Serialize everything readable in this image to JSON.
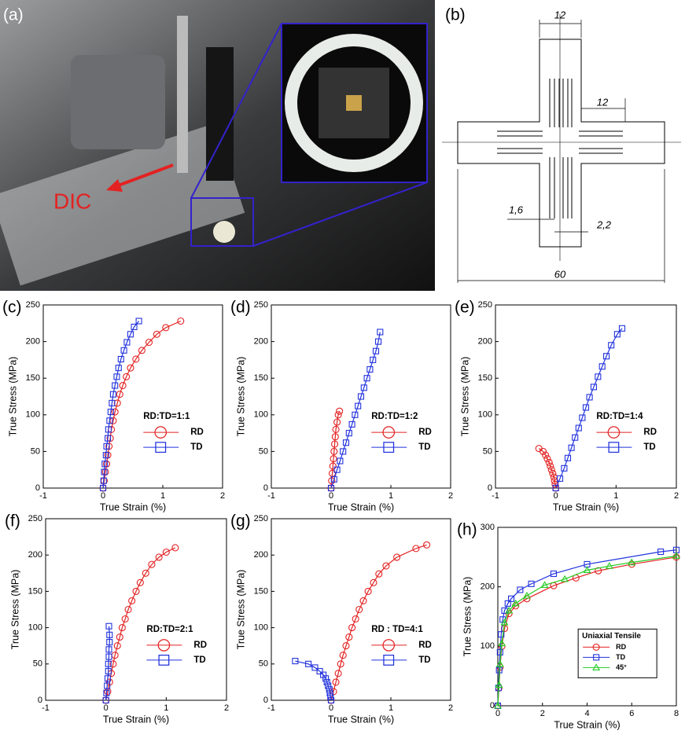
{
  "photo": {
    "label": "(a)",
    "annotation": "DIC"
  },
  "drawing": {
    "label": "(b)",
    "dimensions": [
      "12",
      "12",
      "1,6",
      "2,2",
      "60"
    ]
  },
  "chart_data": [
    {
      "type": "line",
      "label": "(c)",
      "xlabel": "True Strain (%)",
      "ylabel": "True Stress (MPa)",
      "annotation": "RD:TD=1:1",
      "xlim": [
        -1,
        2
      ],
      "xticks": [
        -1,
        0,
        1,
        2
      ],
      "ylim": [
        0,
        250
      ],
      "yticks": [
        0,
        50,
        100,
        150,
        200,
        250
      ],
      "series": [
        {
          "name": "RD",
          "color": "#e32222",
          "marker": "circle",
          "x": [
            0,
            0.02,
            0.04,
            0.06,
            0.08,
            0.1,
            0.12,
            0.14,
            0.17,
            0.2,
            0.24,
            0.28,
            0.33,
            0.39,
            0.46,
            0.55,
            0.65,
            0.77,
            0.9,
            1.05,
            1.3
          ],
          "values": [
            0,
            10,
            22,
            33,
            45,
            57,
            68,
            80,
            92,
            104,
            116,
            128,
            140,
            152,
            164,
            176,
            188,
            199,
            210,
            219,
            228
          ]
        },
        {
          "name": "TD",
          "color": "#2233dd",
          "marker": "square",
          "x": [
            0,
            0.01,
            0.02,
            0.03,
            0.05,
            0.06,
            0.08,
            0.09,
            0.11,
            0.13,
            0.15,
            0.17,
            0.2,
            0.23,
            0.26,
            0.3,
            0.35,
            0.4,
            0.46,
            0.52,
            0.6
          ],
          "values": [
            0,
            10,
            22,
            33,
            45,
            57,
            68,
            80,
            92,
            104,
            116,
            128,
            140,
            152,
            164,
            176,
            188,
            199,
            210,
            220,
            228
          ]
        }
      ]
    },
    {
      "type": "line",
      "label": "(d)",
      "xlabel": "True Strain (%)",
      "ylabel": "True Stress (MPa)",
      "annotation": "RD:TD=1:2",
      "xlim": [
        -1,
        2
      ],
      "xticks": [
        -1,
        0,
        1,
        2
      ],
      "ylim": [
        0,
        250
      ],
      "yticks": [
        0,
        50,
        100,
        150,
        200,
        250
      ],
      "series": [
        {
          "name": "RD",
          "color": "#e32222",
          "marker": "circle",
          "x": [
            0,
            0.01,
            0.02,
            0.03,
            0.04,
            0.05,
            0.06,
            0.07,
            0.08,
            0.1,
            0.12,
            0.14
          ],
          "values": [
            0,
            10,
            20,
            30,
            40,
            50,
            60,
            70,
            80,
            90,
            100,
            105
          ]
        },
        {
          "name": "TD",
          "color": "#2233dd",
          "marker": "square",
          "x": [
            0,
            0.05,
            0.1,
            0.15,
            0.2,
            0.25,
            0.3,
            0.35,
            0.4,
            0.45,
            0.5,
            0.55,
            0.6,
            0.65,
            0.7,
            0.75,
            0.79,
            0.82
          ],
          "values": [
            0,
            12,
            25,
            37,
            50,
            62,
            75,
            87,
            100,
            112,
            125,
            137,
            150,
            162,
            175,
            187,
            200,
            213
          ]
        }
      ]
    },
    {
      "type": "line",
      "label": "(e)",
      "xlabel": "True Strain (%)",
      "ylabel": "True Stress (MPa)",
      "annotation": "RD:TD=1:4",
      "xlim": [
        -1,
        2
      ],
      "xticks": [
        -1,
        0,
        1,
        2
      ],
      "ylim": [
        0,
        250
      ],
      "yticks": [
        0,
        50,
        100,
        150,
        200,
        250
      ],
      "series": [
        {
          "name": "RD",
          "color": "#e32222",
          "marker": "circle",
          "x": [
            0,
            -0.01,
            -0.02,
            -0.03,
            -0.05,
            -0.07,
            -0.09,
            -0.11,
            -0.14,
            -0.17,
            -0.21,
            -0.28
          ],
          "values": [
            0,
            5,
            10,
            15,
            20,
            25,
            30,
            35,
            40,
            45,
            50,
            54
          ]
        },
        {
          "name": "TD",
          "color": "#2233dd",
          "marker": "square",
          "x": [
            0,
            0.07,
            0.14,
            0.2,
            0.26,
            0.32,
            0.38,
            0.44,
            0.5,
            0.56,
            0.63,
            0.7,
            0.77,
            0.84,
            0.92,
            1.02,
            1.1
          ],
          "values": [
            0,
            13,
            27,
            41,
            55,
            69,
            82,
            96,
            110,
            124,
            138,
            152,
            166,
            180,
            195,
            210,
            218
          ]
        }
      ]
    },
    {
      "type": "line",
      "label": "(f)",
      "xlabel": "True Strain (%)",
      "ylabel": "True Stress (MPa)",
      "annotation": "RD:TD=2:1",
      "xlim": [
        -1,
        2
      ],
      "xticks": [
        -1,
        0,
        1,
        2
      ],
      "ylim": [
        0,
        250
      ],
      "yticks": [
        0,
        50,
        100,
        150,
        200,
        250
      ],
      "series": [
        {
          "name": "RD",
          "color": "#e32222",
          "marker": "circle",
          "x": [
            0,
            0.03,
            0.06,
            0.09,
            0.12,
            0.15,
            0.19,
            0.23,
            0.27,
            0.32,
            0.37,
            0.43,
            0.5,
            0.57,
            0.66,
            0.76,
            0.88,
            1.0,
            1.15
          ],
          "values": [
            0,
            12,
            25,
            37,
            50,
            62,
            75,
            87,
            100,
            112,
            125,
            137,
            150,
            162,
            175,
            187,
            197,
            204,
            210
          ]
        },
        {
          "name": "TD",
          "color": "#2233dd",
          "marker": "square",
          "x": [
            0,
            0.01,
            0.02,
            0.03,
            0.04,
            0.04,
            0.05,
            0.05,
            0.06,
            0.06,
            0.05
          ],
          "values": [
            0,
            10,
            20,
            30,
            40,
            50,
            60,
            70,
            80,
            90,
            102
          ]
        }
      ]
    },
    {
      "type": "line",
      "label": "(g)",
      "xlabel": "True Strain (%)",
      "ylabel": "True Stress (MPa)",
      "annotation": "RD : TD=4:1",
      "xlim": [
        -1,
        2
      ],
      "xticks": [
        -1,
        0,
        1,
        2
      ],
      "ylim": [
        0,
        250
      ],
      "yticks": [
        0,
        50,
        100,
        150,
        200,
        250
      ],
      "series": [
        {
          "name": "RD",
          "color": "#e32222",
          "marker": "circle",
          "x": [
            0,
            0.04,
            0.08,
            0.12,
            0.16,
            0.2,
            0.25,
            0.3,
            0.35,
            0.41,
            0.47,
            0.54,
            0.62,
            0.71,
            0.8,
            0.92,
            1.1,
            1.42,
            1.6
          ],
          "values": [
            0,
            12,
            25,
            37,
            50,
            62,
            75,
            87,
            100,
            112,
            125,
            137,
            150,
            162,
            174,
            185,
            197,
            209,
            214
          ]
        },
        {
          "name": "TD",
          "color": "#2233dd",
          "marker": "square",
          "x": [
            0,
            -0.01,
            -0.02,
            -0.03,
            -0.05,
            -0.07,
            -0.09,
            -0.13,
            -0.19,
            -0.27,
            -0.38,
            -0.6
          ],
          "values": [
            0,
            5,
            10,
            15,
            20,
            25,
            30,
            35,
            40,
            45,
            50,
            54
          ]
        }
      ]
    },
    {
      "type": "line",
      "label": "(h)",
      "xlabel": "True Strain (%)",
      "ylabel": "True Stress (MPa)",
      "legend_title": "Uniaxial Tensile",
      "xlim": [
        0,
        8
      ],
      "xticks": [
        0,
        2,
        4,
        6,
        8
      ],
      "ylim": [
        0,
        300
      ],
      "yticks": [
        0,
        100,
        200,
        300
      ],
      "series": [
        {
          "name": "RD",
          "color": "#e32222",
          "marker": "circle",
          "x": [
            0,
            0.05,
            0.1,
            0.18,
            0.3,
            0.5,
            0.8,
            1.3,
            2.5,
            3.5,
            4.5,
            6,
            8
          ],
          "values": [
            0,
            30,
            65,
            100,
            130,
            155,
            168,
            180,
            202,
            215,
            227,
            238,
            250
          ]
        },
        {
          "name": "TD",
          "color": "#2233dd",
          "marker": "square",
          "x": [
            0,
            0.03,
            0.06,
            0.1,
            0.15,
            0.22,
            0.3,
            0.45,
            0.6,
            1.0,
            1.5,
            2.5,
            4,
            7.3,
            8
          ],
          "values": [
            0,
            30,
            60,
            90,
            120,
            145,
            160,
            172,
            180,
            195,
            205,
            222,
            238,
            259,
            262
          ]
        },
        {
          "name": "45°",
          "color": "#22cc22",
          "marker": "triangle",
          "x": [
            0,
            0.05,
            0.1,
            0.18,
            0.3,
            0.5,
            0.8,
            1.3,
            2.1,
            3,
            4,
            5,
            6,
            8
          ],
          "values": [
            0,
            35,
            70,
            105,
            140,
            160,
            172,
            185,
            203,
            213,
            228,
            235,
            241,
            252
          ]
        }
      ]
    }
  ]
}
